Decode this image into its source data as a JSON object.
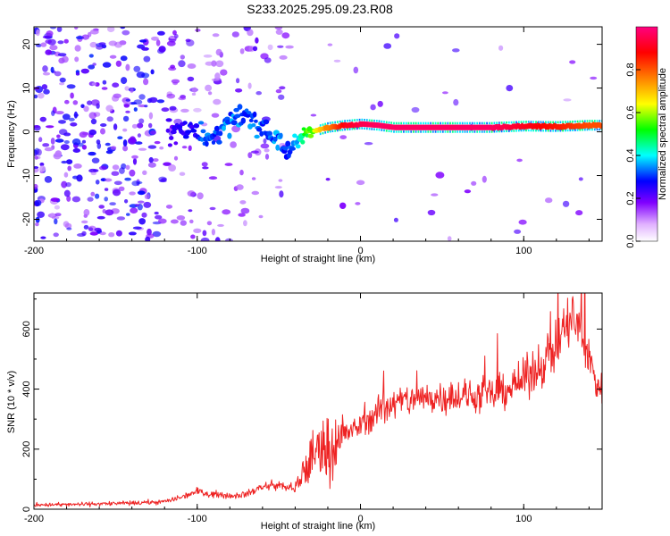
{
  "title": "S233.2025.295.09.23.R08",
  "colors": {
    "snr_line": "#ee2222",
    "frame": "#000000",
    "background": "#ffffff"
  },
  "chart_data": [
    {
      "type": "heatmap",
      "xlabel": "Height of straight line (km)",
      "ylabel": "Frequency (Hz)",
      "xlim": [
        -200,
        148
      ],
      "ylim": [
        -25,
        24
      ],
      "x_ticks": [
        -200,
        -100,
        0,
        100
      ],
      "y_ticks": [
        -20,
        -10,
        0,
        10,
        20
      ],
      "colorbar": {
        "label": "Normalized spectral amplitude",
        "range": [
          0,
          1
        ],
        "ticks": [
          "0.0",
          "0.2",
          "0.4",
          "0.6",
          "0.8"
        ],
        "tick_values": [
          0.0,
          0.2,
          0.4,
          0.6,
          0.8
        ],
        "colormap": [
          "#ffffff",
          "#8000ff",
          "#0000ff",
          "#00ffff",
          "#00ff00",
          "#ffff00",
          "#ff8000",
          "#ff0000",
          "#ff0080"
        ]
      },
      "carrier_track": {
        "x": [
          -200,
          -180,
          -160,
          -140,
          -120,
          -110,
          -100,
          -90,
          -80,
          -70,
          -60,
          -50,
          -45,
          -40,
          -35,
          -30,
          -20,
          -10,
          0,
          10,
          20,
          40,
          60,
          80,
          100,
          120,
          140,
          148
        ],
        "y": [
          0,
          0,
          0,
          0,
          0,
          1,
          0,
          -2,
          2,
          3,
          1,
          -2,
          -5,
          -2,
          -1,
          0,
          1,
          1.5,
          1.8,
          1.5,
          1,
          1,
          1,
          1,
          1.3,
          1.2,
          1.5,
          1.5
        ],
        "amplitude": [
          0.05,
          0.05,
          0.05,
          0.08,
          0.15,
          0.2,
          0.25,
          0.3,
          0.3,
          0.3,
          0.3,
          0.3,
          0.25,
          0.35,
          0.45,
          0.55,
          0.75,
          0.9,
          0.95,
          0.97,
          0.97,
          0.97,
          0.97,
          0.97,
          0.9,
          0.85,
          0.8,
          0.8
        ]
      }
    },
    {
      "type": "line",
      "xlabel": "Height of straight line (km)",
      "ylabel": "SNR (10 * v/v)",
      "xlim": [
        -200,
        148
      ],
      "ylim": [
        0,
        720
      ],
      "x_ticks": [
        -200,
        -100,
        0,
        100
      ],
      "y_ticks": [
        0,
        200,
        400,
        600
      ],
      "series": [
        {
          "name": "SNR",
          "x": [
            -200,
            -180,
            -160,
            -140,
            -120,
            -110,
            -100,
            -90,
            -80,
            -70,
            -60,
            -50,
            -45,
            -40,
            -35,
            -30,
            -25,
            -20,
            -15,
            -10,
            -5,
            0,
            5,
            10,
            20,
            30,
            40,
            50,
            60,
            70,
            80,
            90,
            100,
            110,
            120,
            125,
            130,
            135,
            140,
            145,
            148
          ],
          "values": [
            15,
            15,
            18,
            20,
            25,
            40,
            60,
            50,
            45,
            50,
            75,
            80,
            75,
            60,
            120,
            170,
            210,
            200,
            230,
            250,
            260,
            280,
            300,
            320,
            350,
            365,
            370,
            375,
            375,
            375,
            380,
            400,
            430,
            480,
            540,
            600,
            640,
            580,
            500,
            420,
            400
          ]
        }
      ]
    }
  ]
}
